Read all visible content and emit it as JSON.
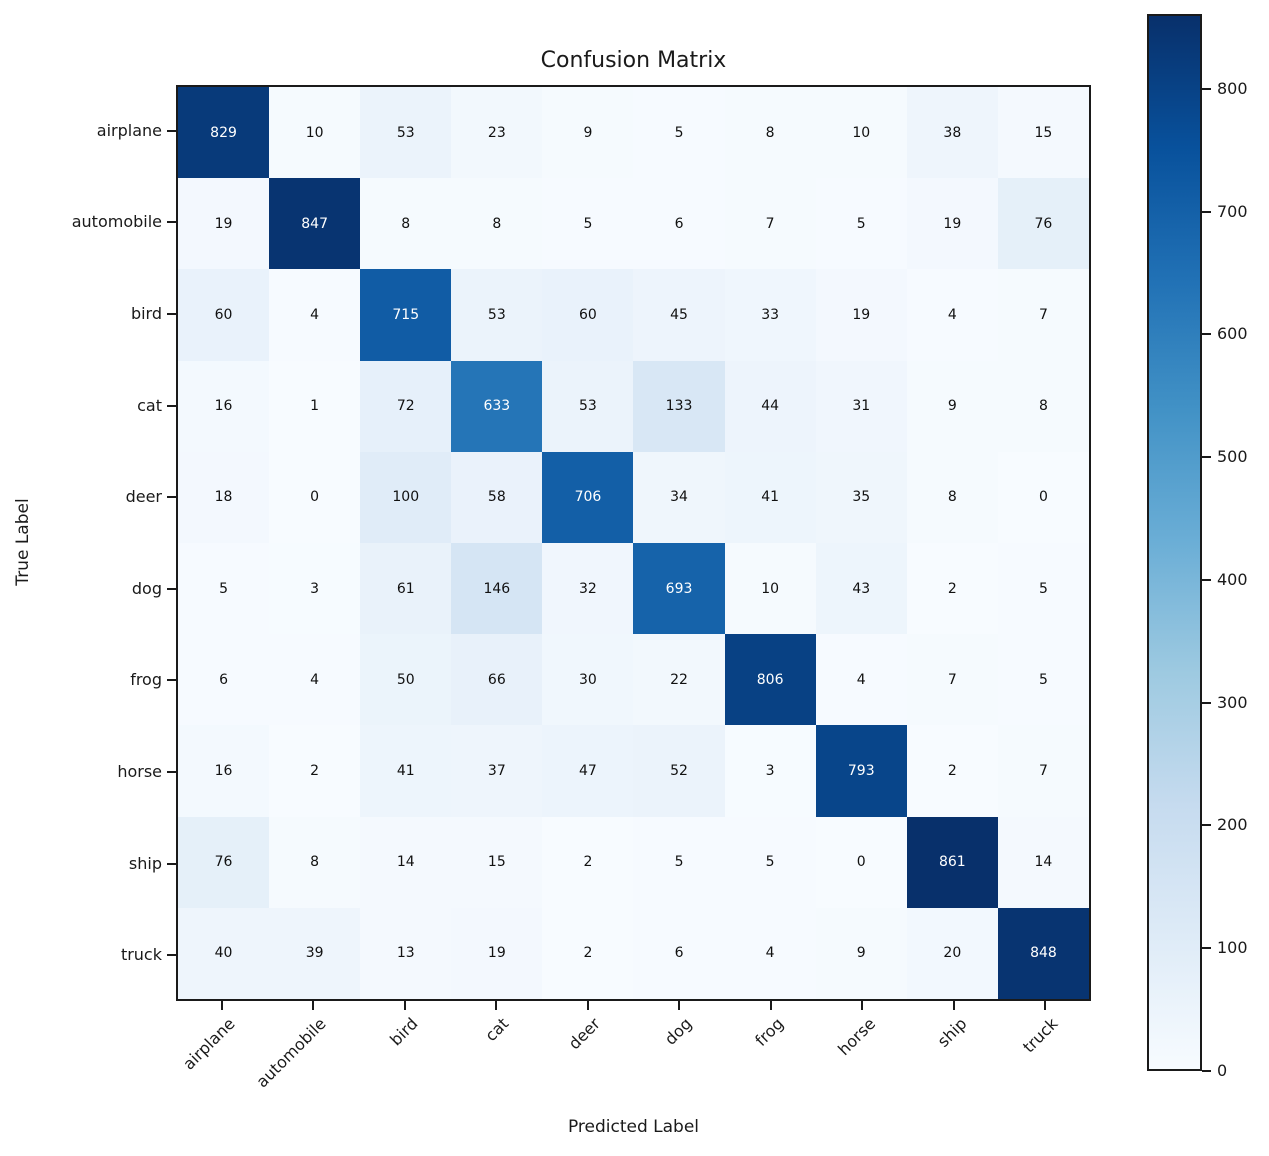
{
  "chart_data": {
    "type": "heatmap",
    "title": "Confusion Matrix",
    "xlabel": "Predicted Label",
    "ylabel": "True Label",
    "x_categories": [
      "airplane",
      "automobile",
      "bird",
      "cat",
      "deer",
      "dog",
      "frog",
      "horse",
      "ship",
      "truck"
    ],
    "y_categories": [
      "airplane",
      "automobile",
      "bird",
      "cat",
      "deer",
      "dog",
      "frog",
      "horse",
      "ship",
      "truck"
    ],
    "values": [
      [
        829,
        10,
        53,
        23,
        9,
        5,
        8,
        10,
        38,
        15
      ],
      [
        19,
        847,
        8,
        8,
        5,
        6,
        7,
        5,
        19,
        76
      ],
      [
        60,
        4,
        715,
        53,
        60,
        45,
        33,
        19,
        4,
        7
      ],
      [
        16,
        1,
        72,
        633,
        53,
        133,
        44,
        31,
        9,
        8
      ],
      [
        18,
        0,
        100,
        58,
        706,
        34,
        41,
        35,
        8,
        0
      ],
      [
        5,
        3,
        61,
        146,
        32,
        693,
        10,
        43,
        2,
        5
      ],
      [
        6,
        4,
        50,
        66,
        30,
        22,
        806,
        4,
        7,
        5
      ],
      [
        16,
        2,
        41,
        37,
        47,
        52,
        3,
        793,
        2,
        7
      ],
      [
        76,
        8,
        14,
        15,
        2,
        5,
        5,
        0,
        861,
        14
      ],
      [
        40,
        39,
        13,
        19,
        2,
        6,
        4,
        9,
        20,
        848
      ]
    ],
    "vmin": 0,
    "vmax": 861,
    "grid": false,
    "colormap": "Blues",
    "colormap_anchors": [
      "#f7fbff",
      "#deebf7",
      "#c6dbef",
      "#9ecae1",
      "#6baed6",
      "#4292c6",
      "#2171b5",
      "#08519c",
      "#08306b"
    ],
    "colorbar_ticks": [
      0,
      100,
      200,
      300,
      400,
      500,
      600,
      700,
      800
    ],
    "colorbar_position": "right",
    "text_color_threshold": 430.5,
    "cell_text_dark": "#111111",
    "cell_text_light": "#ffffff",
    "axis_color": "#1a1a1a"
  }
}
